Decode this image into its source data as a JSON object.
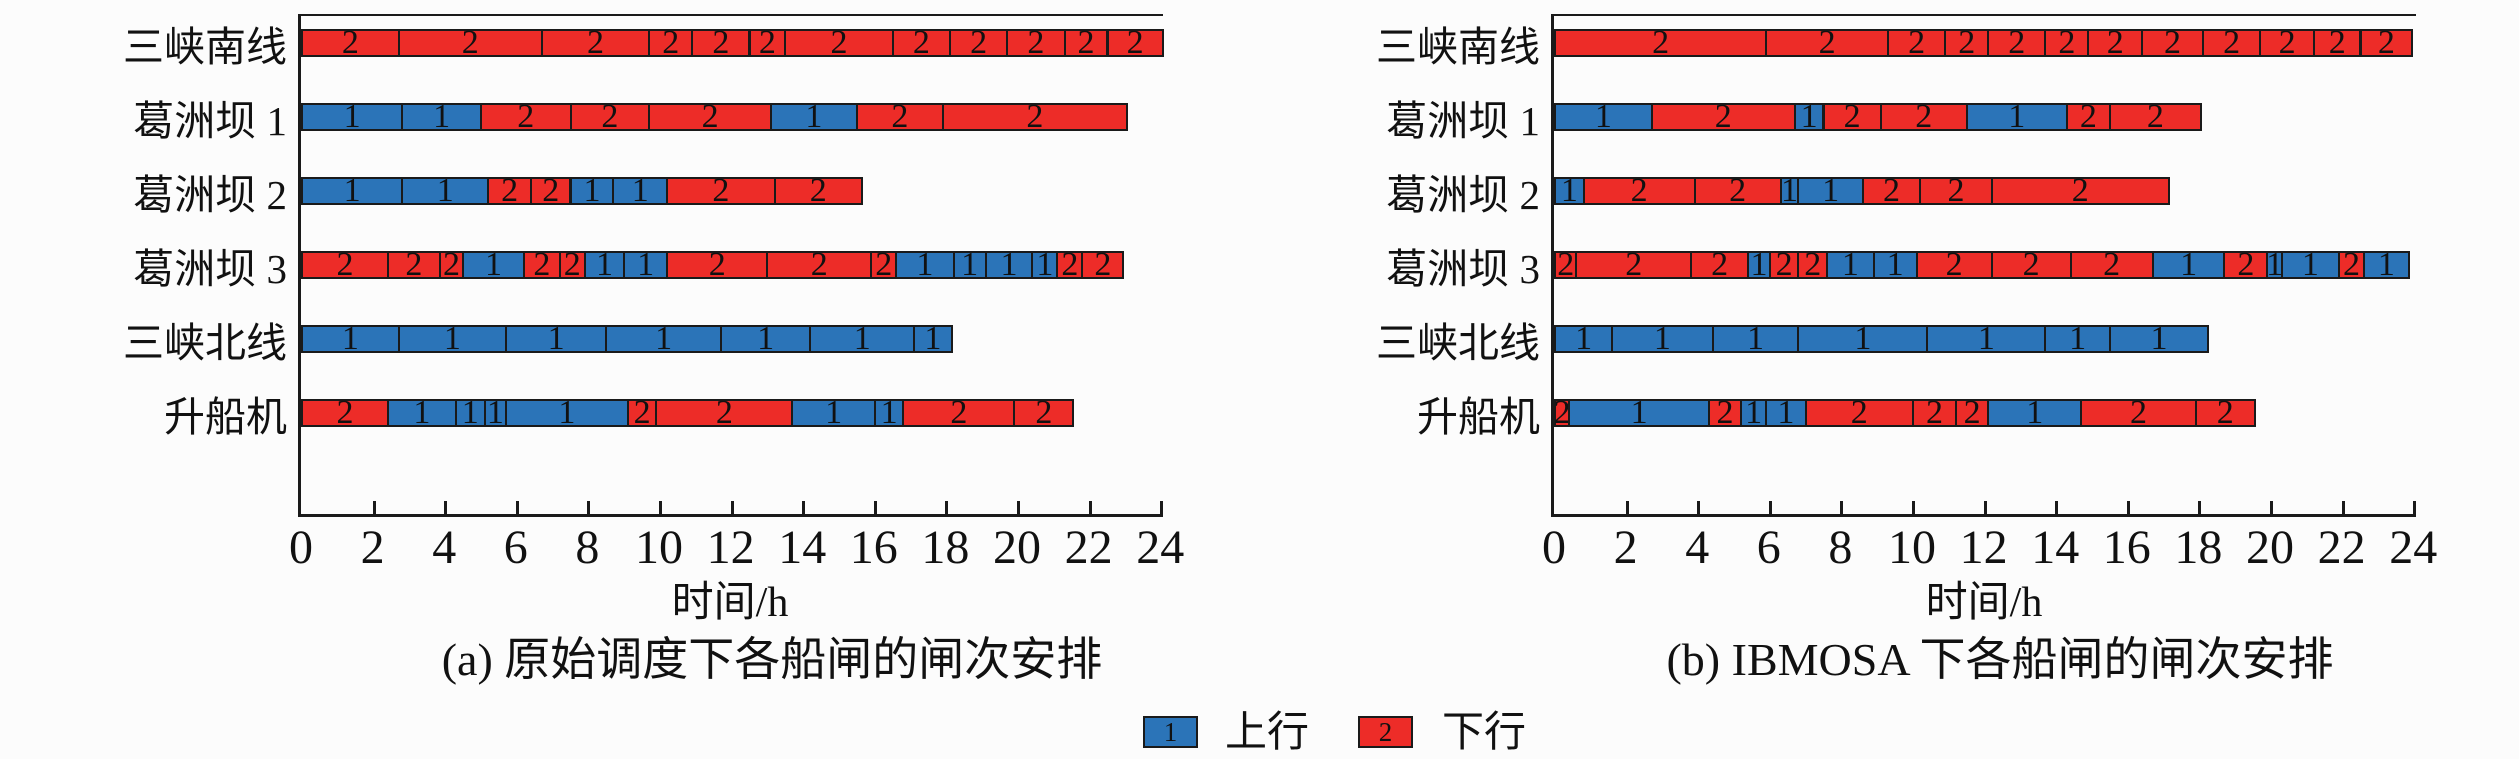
{
  "figure": {
    "description": "两个船闸闸次安排甘特图（Gantt schedule of lock operations）",
    "background": "#fcfcfc",
    "colors": {
      "upstream_blue": "#2b74b8",
      "downstream_red": "#ed2c28",
      "axis": "#1a1a1a"
    }
  },
  "legend": {
    "items": [
      {
        "key": "1",
        "label": "上行",
        "color": "#2b74b8"
      },
      {
        "key": "2",
        "label": "下行",
        "color": "#ed2c28"
      }
    ]
  },
  "chart_data": [
    {
      "type": "bar",
      "subtype": "gantt-schedule",
      "title": "(a) 原始调度下各船闸的闸次安排",
      "xlabel": "时间/h",
      "xlim": [
        0,
        24
      ],
      "x_ticks": [
        0,
        2,
        4,
        6,
        8,
        10,
        12,
        14,
        16,
        18,
        20,
        22,
        24
      ],
      "categories": [
        "三峡南线",
        "葛洲坝 1",
        "葛洲坝 2",
        "葛洲坝 3",
        "三峡北线",
        "升船机"
      ],
      "segment_format": "[start_hour, end_hour, direction(1=上行/blue, 2=下行/red)]",
      "rows": [
        {
          "category": "三峡南线",
          "segments": [
            [
              0,
              2.7,
              2
            ],
            [
              2.7,
              6.7,
              2
            ],
            [
              6.7,
              9.7,
              2
            ],
            [
              9.7,
              10.9,
              2
            ],
            [
              10.9,
              12.5,
              2
            ],
            [
              12.5,
              13.5,
              2
            ],
            [
              13.5,
              16.5,
              2
            ],
            [
              16.5,
              18.1,
              2
            ],
            [
              18.1,
              19.7,
              2
            ],
            [
              19.7,
              21.3,
              2
            ],
            [
              21.3,
              22.5,
              2
            ],
            [
              22.5,
              24.1,
              2
            ]
          ]
        },
        {
          "category": "葛洲坝 1",
          "segments": [
            [
              0,
              2.8,
              1
            ],
            [
              2.8,
              5.0,
              1
            ],
            [
              5.0,
              7.5,
              2
            ],
            [
              7.5,
              9.7,
              2
            ],
            [
              9.7,
              13.1,
              2
            ],
            [
              13.1,
              15.5,
              1
            ],
            [
              15.5,
              17.9,
              2
            ],
            [
              17.9,
              23.1,
              2
            ]
          ]
        },
        {
          "category": "葛洲坝 2",
          "segments": [
            [
              0,
              2.8,
              1
            ],
            [
              2.8,
              5.2,
              1
            ],
            [
              5.2,
              6.4,
              2
            ],
            [
              6.4,
              7.5,
              2
            ],
            [
              7.5,
              8.7,
              1
            ],
            [
              8.7,
              10.2,
              1
            ],
            [
              10.2,
              13.2,
              2
            ],
            [
              13.2,
              15.7,
              2
            ]
          ]
        },
        {
          "category": "葛洲坝 3",
          "segments": [
            [
              0,
              2.4,
              2
            ],
            [
              2.4,
              3.85,
              2
            ],
            [
              3.85,
              4.5,
              2
            ],
            [
              4.5,
              6.2,
              1
            ],
            [
              6.2,
              7.2,
              2
            ],
            [
              7.2,
              7.9,
              2
            ],
            [
              7.9,
              9.0,
              1
            ],
            [
              9.0,
              10.2,
              1
            ],
            [
              10.2,
              13.0,
              2
            ],
            [
              13.0,
              15.9,
              2
            ],
            [
              15.9,
              16.6,
              2
            ],
            [
              16.6,
              18.2,
              1
            ],
            [
              18.2,
              19.1,
              1
            ],
            [
              19.1,
              20.4,
              1
            ],
            [
              20.4,
              21.1,
              1
            ],
            [
              21.1,
              21.8,
              2
            ],
            [
              21.8,
              23.0,
              2
            ]
          ]
        },
        {
          "category": "三峡北线",
          "segments": [
            [
              0,
              2.7,
              1
            ],
            [
              2.7,
              5.7,
              1
            ],
            [
              5.7,
              8.5,
              1
            ],
            [
              8.5,
              11.7,
              1
            ],
            [
              11.7,
              14.2,
              1
            ],
            [
              14.2,
              17.1,
              1
            ],
            [
              17.1,
              18.2,
              1
            ]
          ]
        },
        {
          "category": "升船机",
          "segments": [
            [
              0,
              2.4,
              2
            ],
            [
              2.4,
              4.3,
              1
            ],
            [
              4.3,
              5.1,
              1
            ],
            [
              5.1,
              5.7,
              1
            ],
            [
              5.7,
              9.1,
              1
            ],
            [
              9.1,
              9.9,
              2
            ],
            [
              9.9,
              13.7,
              2
            ],
            [
              13.7,
              16.0,
              1
            ],
            [
              16.0,
              16.8,
              1
            ],
            [
              16.8,
              19.9,
              2
            ],
            [
              19.9,
              21.6,
              2
            ]
          ]
        }
      ]
    },
    {
      "type": "bar",
      "subtype": "gantt-schedule",
      "title": "(b) IBMOSA 下各船闸的闸次安排",
      "xlabel": "时间/h",
      "xlim": [
        0,
        24
      ],
      "x_ticks": [
        0,
        2,
        4,
        6,
        8,
        10,
        12,
        14,
        16,
        18,
        20,
        22,
        24
      ],
      "categories": [
        "三峡南线",
        "葛洲坝 1",
        "葛洲坝 2",
        "葛洲坝 3",
        "三峡北线",
        "升船机"
      ],
      "segment_format": "[start_hour, end_hour, direction(1=上行/blue, 2=下行/red)]",
      "rows": [
        {
          "category": "三峡南线",
          "segments": [
            [
              0,
              5.9,
              2
            ],
            [
              5.9,
              9.3,
              2
            ],
            [
              9.3,
              10.9,
              2
            ],
            [
              10.9,
              12.1,
              2
            ],
            [
              12.1,
              13.7,
              2
            ],
            [
              13.7,
              14.9,
              2
            ],
            [
              14.9,
              16.4,
              2
            ],
            [
              16.4,
              18.1,
              2
            ],
            [
              18.1,
              19.7,
              2
            ],
            [
              19.7,
              21.2,
              2
            ],
            [
              21.2,
              22.5,
              2
            ],
            [
              22.5,
              24.0,
              2
            ]
          ]
        },
        {
          "category": "葛洲坝 1",
          "segments": [
            [
              0,
              2.7,
              1
            ],
            [
              2.7,
              6.7,
              2
            ],
            [
              6.7,
              7.5,
              1
            ],
            [
              7.5,
              9.1,
              2
            ],
            [
              9.1,
              11.5,
              2
            ],
            [
              11.5,
              14.3,
              1
            ],
            [
              14.3,
              15.5,
              2
            ],
            [
              15.5,
              18.1,
              2
            ]
          ]
        },
        {
          "category": "葛洲坝 2",
          "segments": [
            [
              0,
              0.8,
              1
            ],
            [
              0.8,
              3.9,
              2
            ],
            [
              3.9,
              6.3,
              2
            ],
            [
              6.3,
              6.8,
              1
            ],
            [
              6.8,
              8.6,
              1
            ],
            [
              8.6,
              10.2,
              2
            ],
            [
              10.2,
              12.2,
              2
            ],
            [
              12.2,
              17.2,
              2
            ]
          ]
        },
        {
          "category": "葛洲坝 3",
          "segments": [
            [
              0,
              0.6,
              2
            ],
            [
              0.6,
              3.8,
              2
            ],
            [
              3.8,
              5.4,
              2
            ],
            [
              5.4,
              6.0,
              1
            ],
            [
              6.0,
              6.8,
              2
            ],
            [
              6.8,
              7.6,
              2
            ],
            [
              7.6,
              8.9,
              1
            ],
            [
              8.9,
              10.1,
              1
            ],
            [
              10.1,
              12.2,
              2
            ],
            [
              12.2,
              14.4,
              2
            ],
            [
              14.4,
              16.7,
              2
            ],
            [
              16.7,
              18.7,
              1
            ],
            [
              18.7,
              19.9,
              2
            ],
            [
              19.9,
              20.3,
              1
            ],
            [
              20.3,
              21.9,
              1
            ],
            [
              21.9,
              22.6,
              2
            ],
            [
              22.6,
              23.9,
              1
            ]
          ]
        },
        {
          "category": "三峡北线",
          "segments": [
            [
              0,
              1.6,
              1
            ],
            [
              1.6,
              4.4,
              1
            ],
            [
              4.4,
              6.8,
              1
            ],
            [
              6.8,
              10.4,
              1
            ],
            [
              10.4,
              13.7,
              1
            ],
            [
              13.7,
              15.5,
              1
            ],
            [
              15.5,
              18.3,
              1
            ]
          ]
        },
        {
          "category": "升船机",
          "segments": [
            [
              0,
              0.4,
              2
            ],
            [
              0.4,
              4.3,
              1
            ],
            [
              4.3,
              5.2,
              2
            ],
            [
              5.2,
              5.9,
              1
            ],
            [
              5.9,
              7.0,
              1
            ],
            [
              7.0,
              10.0,
              2
            ],
            [
              10.0,
              11.2,
              2
            ],
            [
              11.2,
              12.1,
              2
            ],
            [
              12.1,
              14.7,
              1
            ],
            [
              14.7,
              17.9,
              2
            ],
            [
              17.9,
              19.6,
              2
            ]
          ]
        }
      ]
    }
  ]
}
